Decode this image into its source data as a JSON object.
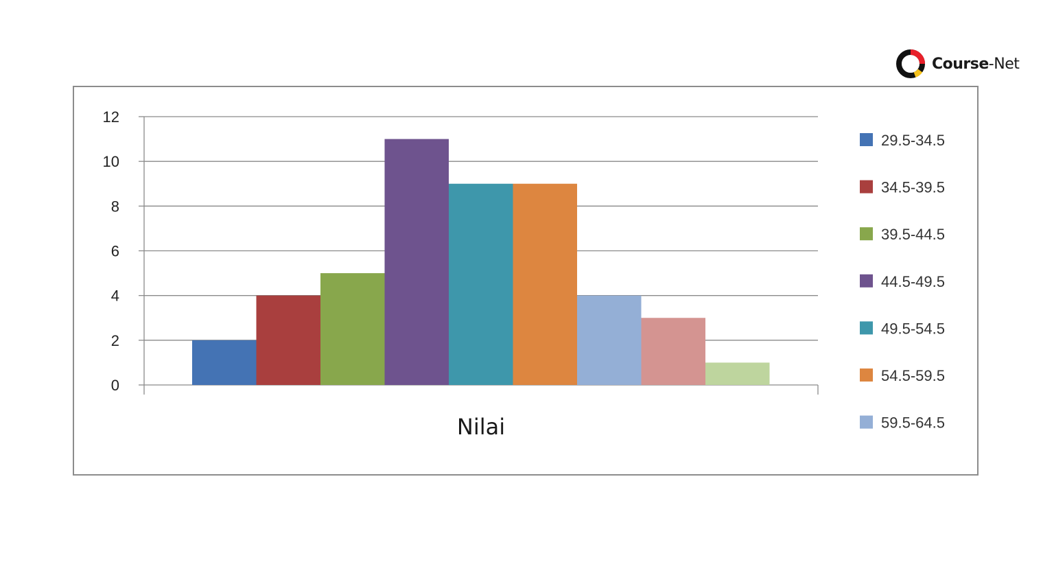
{
  "brand": {
    "name_bold": "Course",
    "name_light": "-Net",
    "logo_icon": "course-net-ring-icon",
    "colors": {
      "ring_dark": "#111111",
      "ring_red": "#e8202a",
      "ring_yellow": "#f6c21c"
    }
  },
  "chart_data": {
    "type": "bar",
    "title": "",
    "xlabel": "Nilai",
    "ylabel": "",
    "ylim": [
      0,
      12
    ],
    "yticks": [
      0,
      2,
      4,
      6,
      8,
      10,
      12
    ],
    "grid": true,
    "legend_position": "right",
    "series": [
      {
        "name": "29.5-34.5",
        "value": 2,
        "color": "#4473b4"
      },
      {
        "name": "34.5-39.5",
        "value": 4,
        "color": "#a93f3e"
      },
      {
        "name": "39.5-44.5",
        "value": 5,
        "color": "#88a74c"
      },
      {
        "name": "44.5-49.5",
        "value": 11,
        "color": "#6e538e"
      },
      {
        "name": "49.5-54.5",
        "value": 9,
        "color": "#3e97ab"
      },
      {
        "name": "54.5-59.5",
        "value": 9,
        "color": "#dd8640"
      },
      {
        "name": "59.5-64.5",
        "value": 4,
        "color": "#94afd6"
      },
      {
        "value": 3,
        "color": "#d49491"
      },
      {
        "value": 1,
        "color": "#bed59e"
      }
    ],
    "legend_visible_count": 7
  }
}
